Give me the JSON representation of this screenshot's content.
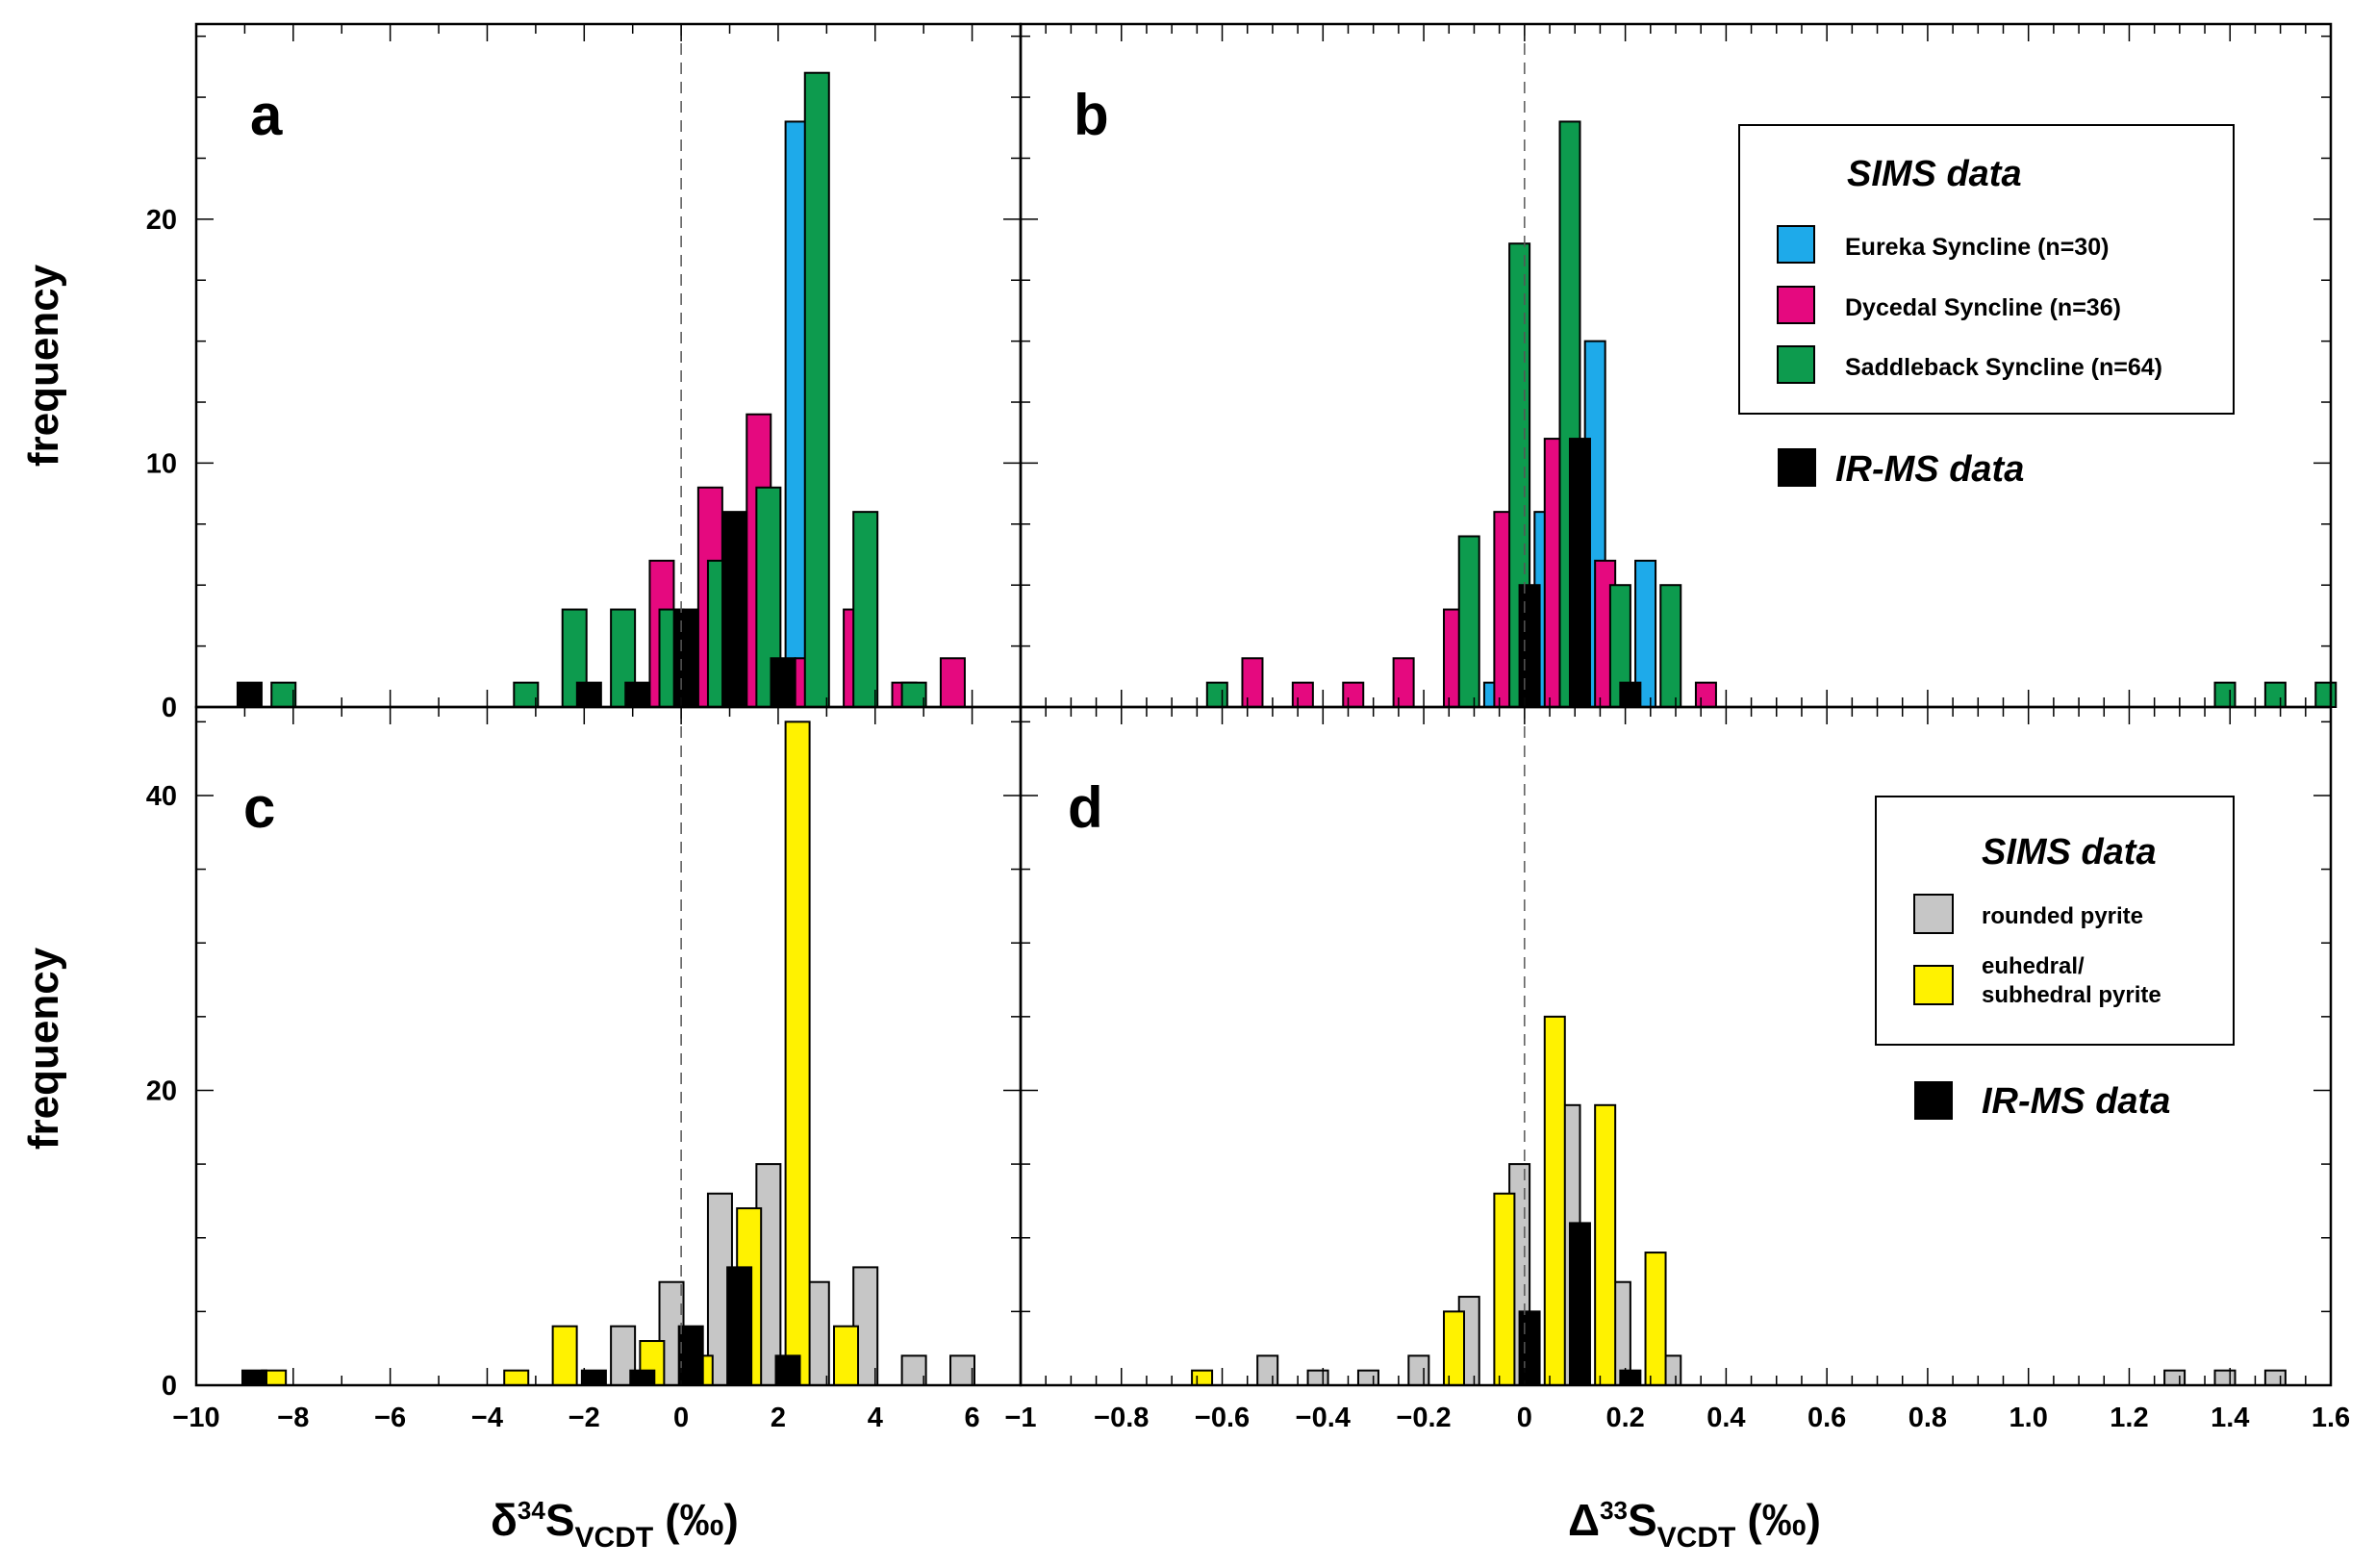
{
  "figure": {
    "y_axis_label": "frequency",
    "x_axis_left": {
      "symbol": "δ",
      "sup": "34",
      "main": "S",
      "sub": "VCDT",
      "unit": "(‰)"
    },
    "x_axis_right": {
      "symbol": "Δ",
      "sup": "33",
      "main": "S",
      "sub": "VCDT",
      "unit": "(‰)"
    }
  },
  "legends": {
    "top": {
      "title": "SIMS data",
      "items": [
        {
          "label": "Eureka Syncline (n=30)",
          "color": "#1eaaea"
        },
        {
          "label": "Dycedal Syncline (n=36)",
          "color": "#e5097f"
        },
        {
          "label": "Saddleback Syncline (n=64)",
          "color": "#0d9b4e"
        }
      ],
      "irms_label": "IR-MS data"
    },
    "bottom": {
      "title": "SIMS data",
      "items": [
        {
          "label": "rounded pyrite",
          "color": "#c6c6c6"
        },
        {
          "label_lines": [
            "euhedral/",
            "subhedral pyrite"
          ],
          "color": "#fff200"
        }
      ],
      "irms_label": "IR-MS data"
    }
  },
  "chart_data": [
    {
      "panel": "a",
      "type": "bar",
      "xlim": [
        -10,
        7
      ],
      "ylim": [
        0,
        28
      ],
      "yticks_labeled": [
        0,
        10,
        20
      ],
      "xlabel": "δ34S VCDT (‰)",
      "ylabel": "frequency",
      "series": [
        {
          "name": "Eureka Syncline (n=30)",
          "color": "#1eaaea",
          "points": [
            [
              1.4,
              6
            ],
            [
              2.4,
              24
            ]
          ]
        },
        {
          "name": "Dycedal Syncline (n=36)",
          "color": "#e5097f",
          "points": [
            [
              -0.4,
              6
            ],
            [
              0.6,
              9
            ],
            [
              1.6,
              12
            ],
            [
              2.6,
              2
            ],
            [
              3.6,
              4
            ],
            [
              4.6,
              1
            ],
            [
              5.6,
              2
            ]
          ]
        },
        {
          "name": "Saddleback Syncline (n=64)",
          "color": "#0d9b4e",
          "points": [
            [
              -8.2,
              1
            ],
            [
              -3.2,
              1
            ],
            [
              -2.2,
              4
            ],
            [
              -1.2,
              4
            ],
            [
              -0.2,
              4
            ],
            [
              0.8,
              6
            ],
            [
              1.8,
              9
            ],
            [
              2.8,
              26
            ],
            [
              3.8,
              8
            ],
            [
              4.8,
              1
            ]
          ]
        },
        {
          "name": "IR-MS data",
          "color": "#000000",
          "points": [
            [
              -8.9,
              1
            ],
            [
              -1.9,
              1
            ],
            [
              -0.9,
              1
            ],
            [
              0.1,
              4
            ],
            [
              1.1,
              8
            ],
            [
              2.1,
              2
            ]
          ]
        }
      ]
    },
    {
      "panel": "b",
      "type": "bar",
      "xlim": [
        -1.0,
        1.6
      ],
      "ylim": [
        0,
        28
      ],
      "yticks_labeled": [
        0,
        10,
        20
      ],
      "xlabel": "Δ33S VCDT (‰)",
      "ylabel": "frequency",
      "series": [
        {
          "name": "Eureka Syncline (n=30)",
          "color": "#1eaaea",
          "points": [
            [
              -0.06,
              1
            ],
            [
              0.04,
              8
            ],
            [
              0.14,
              15
            ],
            [
              0.24,
              6
            ]
          ]
        },
        {
          "name": "Dycedal Syncline (n=36)",
          "color": "#e5097f",
          "points": [
            [
              -0.54,
              2
            ],
            [
              -0.44,
              1
            ],
            [
              -0.34,
              1
            ],
            [
              -0.24,
              2
            ],
            [
              -0.14,
              4
            ],
            [
              -0.04,
              8
            ],
            [
              0.06,
              11
            ],
            [
              0.16,
              6
            ],
            [
              0.36,
              1
            ]
          ]
        },
        {
          "name": "Saddleback Syncline (n=64)",
          "color": "#0d9b4e",
          "points": [
            [
              -0.61,
              1
            ],
            [
              -0.11,
              7
            ],
            [
              -0.01,
              19
            ],
            [
              0.09,
              24
            ],
            [
              0.19,
              5
            ],
            [
              0.29,
              5
            ],
            [
              1.39,
              1
            ],
            [
              1.49,
              1
            ],
            [
              1.59,
              1
            ]
          ]
        },
        {
          "name": "IR-MS data",
          "color": "#000000",
          "points": [
            [
              0.01,
              5
            ],
            [
              0.11,
              11
            ],
            [
              0.21,
              1
            ]
          ]
        }
      ]
    },
    {
      "panel": "c",
      "type": "bar",
      "xlim": [
        -10,
        7
      ],
      "ylim": [
        0,
        46
      ],
      "yticks_labeled": [
        0,
        20,
        40
      ],
      "xlabel": "δ34S VCDT (‰)",
      "ylabel": "frequency",
      "series": [
        {
          "name": "rounded pyrite",
          "color": "#c6c6c6",
          "points": [
            [
              -1.2,
              4
            ],
            [
              -0.2,
              7
            ],
            [
              0.8,
              13
            ],
            [
              1.8,
              15
            ],
            [
              2.8,
              7
            ],
            [
              3.8,
              8
            ],
            [
              4.8,
              2
            ],
            [
              5.8,
              2
            ]
          ]
        },
        {
          "name": "euhedral/subhedral pyrite",
          "color": "#fff200",
          "points": [
            [
              -8.4,
              1
            ],
            [
              -3.4,
              1
            ],
            [
              -2.4,
              4
            ],
            [
              -0.6,
              3
            ],
            [
              0.4,
              2
            ],
            [
              1.4,
              12
            ],
            [
              2.4,
              45
            ],
            [
              3.4,
              4
            ]
          ]
        },
        {
          "name": "IR-MS data",
          "color": "#000000",
          "points": [
            [
              -8.8,
              1
            ],
            [
              -1.8,
              1
            ],
            [
              -0.8,
              1
            ],
            [
              0.2,
              4
            ],
            [
              1.2,
              8
            ],
            [
              2.2,
              2
            ]
          ]
        }
      ]
    },
    {
      "panel": "d",
      "type": "bar",
      "xlim": [
        -1.0,
        1.6
      ],
      "ylim": [
        0,
        46
      ],
      "yticks_labeled": [
        0,
        20,
        40
      ],
      "xlabel": "Δ33S VCDT (‰)",
      "ylabel": "frequency",
      "series": [
        {
          "name": "rounded pyrite",
          "color": "#c6c6c6",
          "points": [
            [
              -0.51,
              2
            ],
            [
              -0.41,
              1
            ],
            [
              -0.31,
              1
            ],
            [
              -0.21,
              2
            ],
            [
              -0.11,
              6
            ],
            [
              -0.01,
              15
            ],
            [
              0.09,
              19
            ],
            [
              0.19,
              7
            ],
            [
              0.29,
              2
            ],
            [
              1.29,
              1
            ],
            [
              1.39,
              1
            ],
            [
              1.49,
              1
            ]
          ]
        },
        {
          "name": "euhedral/subhedral pyrite",
          "color": "#fff200",
          "points": [
            [
              -0.64,
              1
            ],
            [
              -0.14,
              5
            ],
            [
              -0.04,
              13
            ],
            [
              0.06,
              25
            ],
            [
              0.16,
              19
            ],
            [
              0.26,
              9
            ]
          ]
        },
        {
          "name": "IR-MS data",
          "color": "#000000",
          "points": [
            [
              0.01,
              5
            ],
            [
              0.11,
              11
            ],
            [
              0.21,
              1
            ]
          ]
        }
      ]
    }
  ],
  "x_tick_labels": {
    "left": [
      "−10",
      "−8",
      "−6",
      "−4",
      "−2",
      "0",
      "2",
      "4",
      "6"
    ],
    "right": [
      "−1",
      "−0.8",
      "−0.6",
      "−0.4",
      "−0.2",
      "0",
      "0.2",
      "0.4",
      "0.6",
      "0.8",
      "1.0",
      "1.2",
      "1.4",
      "1.6"
    ]
  }
}
